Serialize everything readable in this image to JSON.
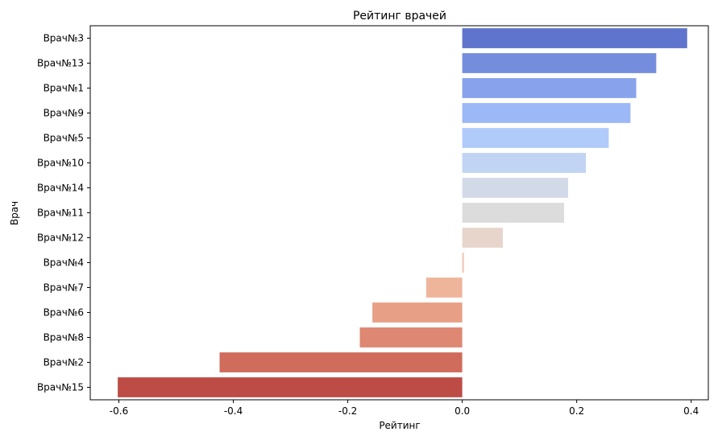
{
  "chart_data": {
    "type": "bar",
    "orientation": "horizontal",
    "title": "Рейтинг врачей",
    "xlabel": "Рейтинг",
    "ylabel": "Врач",
    "xlim": [
      -0.65,
      0.43
    ],
    "xticks": [
      "-0.6",
      "-0.4",
      "-0.2",
      "0.0",
      "0.2",
      "0.4"
    ],
    "xtick_values": [
      -0.6,
      -0.4,
      -0.2,
      0.0,
      0.2,
      0.4
    ],
    "grid": false,
    "categories": [
      "Врач№3",
      "Врач№13",
      "Врач№1",
      "Врач№9",
      "Врач№5",
      "Врач№10",
      "Врач№14",
      "Врач№11",
      "Врач№12",
      "Врач№4",
      "Врач№7",
      "Врач№6",
      "Врач№8",
      "Врач№2",
      "Врач№15"
    ],
    "values": [
      0.393,
      0.339,
      0.304,
      0.294,
      0.256,
      0.216,
      0.185,
      0.178,
      0.071,
      0.003,
      -0.063,
      -0.157,
      -0.179,
      -0.424,
      -0.602
    ],
    "colors": [
      "#5f74cc",
      "#748ddd",
      "#88a3ec",
      "#9cb8f7",
      "#b0cafa",
      "#c1d4f3",
      "#d2dae8",
      "#dcdcdc",
      "#e7d5cc",
      "#f1c8b5",
      "#eeb59b",
      "#e7a085",
      "#de8772",
      "#d06c5c",
      "#bd4c47"
    ]
  }
}
